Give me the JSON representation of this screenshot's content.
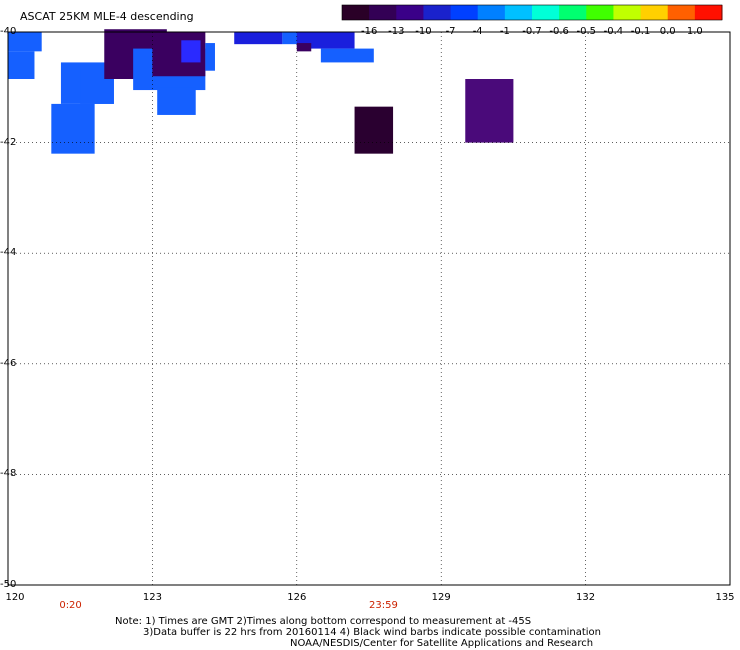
{
  "title": "ASCAT 25KM MLE-4 descending",
  "colorbar": {
    "labels": [
      "-16",
      "-13",
      "-10",
      "-7",
      "-4",
      "-1",
      "-0.7",
      "-0.6",
      "-0.5",
      "-0.4",
      "-0.1",
      "0.0",
      "1.0"
    ],
    "colors": [
      "#2a0027",
      "#330055",
      "#3a0088",
      "#1a22cc",
      "#0040ff",
      "#0080ff",
      "#00c0ff",
      "#00ffd8",
      "#00ff70",
      "#40ff00",
      "#c0ff00",
      "#ffd000",
      "#ff6000",
      "#ff1000"
    ]
  },
  "axes": {
    "lon_ticks": [
      "120",
      "123",
      "126",
      "129",
      "132",
      "135"
    ],
    "lat_ticks": [
      "-40",
      "-42",
      "-44",
      "-46",
      "-48",
      "-50"
    ]
  },
  "time_labels": [
    {
      "text": "0:20",
      "lon": 121.3
    },
    {
      "text": "23:59",
      "lon": 127.8
    }
  ],
  "notes": {
    "line1": "Note: 1) Times are GMT 2)Times along bottom correspond to measurement at -45S",
    "line2": "3)Data buffer is 22 hrs from 20160114 4) Black wind barbs indicate possible contamination",
    "line3": "NOAA/NESDIS/Center for Satellite Applications and Research"
  },
  "colors": {
    "time_label": "#cc2200",
    "grid": "#000000"
  },
  "data_cells": [
    {
      "lon1": 120.0,
      "lat1": -40.0,
      "lon2": 120.7,
      "lat2": -40.35,
      "color": "#1560ff"
    },
    {
      "lon1": 120.0,
      "lat1": -40.35,
      "lon2": 120.55,
      "lat2": -40.85,
      "color": "#1560ff"
    },
    {
      "lon1": 121.1,
      "lat1": -40.55,
      "lon2": 122.2,
      "lat2": -41.3,
      "color": "#1560ff"
    },
    {
      "lon1": 120.9,
      "lat1": -41.3,
      "lon2": 121.8,
      "lat2": -42.2,
      "color": "#1560ff"
    },
    {
      "lon1": 121.5,
      "lat1": -40.6,
      "lon2": 122.2,
      "lat2": -41.3,
      "color": "#1560ff"
    },
    {
      "lon1": 122.0,
      "lat1": -39.95,
      "lon2": 123.3,
      "lat2": -40.85,
      "color": "#3a0060"
    },
    {
      "lon1": 122.6,
      "lat1": -40.3,
      "lon2": 124.1,
      "lat2": -41.05,
      "color": "#1560ff"
    },
    {
      "lon1": 123.0,
      "lat1": -40.0,
      "lon2": 124.1,
      "lat2": -40.8,
      "color": "#3a0060"
    },
    {
      "lon1": 123.1,
      "lat1": -41.0,
      "lon2": 123.9,
      "lat2": -41.5,
      "color": "#1560ff"
    },
    {
      "lon1": 124.1,
      "lat1": -40.2,
      "lon2": 124.3,
      "lat2": -40.7,
      "color": "#1560ff"
    },
    {
      "lon1": 123.6,
      "lat1": -40.15,
      "lon2": 124.0,
      "lat2": -40.55,
      "color": "#2a2aff"
    },
    {
      "lon1": 124.7,
      "lat1": -40.0,
      "lon2": 125.7,
      "lat2": -40.22,
      "color": "#1a1fdd"
    },
    {
      "lon1": 125.7,
      "lat1": -40.0,
      "lon2": 126.2,
      "lat2": -40.22,
      "color": "#1560ff"
    },
    {
      "lon1": 126.0,
      "lat1": -40.0,
      "lon2": 127.2,
      "lat2": -40.3,
      "color": "#1a1fdd"
    },
    {
      "lon1": 126.5,
      "lat1": -40.3,
      "lon2": 127.6,
      "lat2": -40.55,
      "color": "#1560ff"
    },
    {
      "lon1": 126.0,
      "lat1": -40.2,
      "lon2": 126.3,
      "lat2": -40.35,
      "color": "#3a0060"
    },
    {
      "lon1": 127.2,
      "lat1": -41.35,
      "lon2": 128.0,
      "lat2": -42.2,
      "color": "#2a0030"
    },
    {
      "lon1": 129.5,
      "lat1": -40.85,
      "lon2": 130.5,
      "lat2": -42.0,
      "color": "#4a0a7a"
    }
  ]
}
